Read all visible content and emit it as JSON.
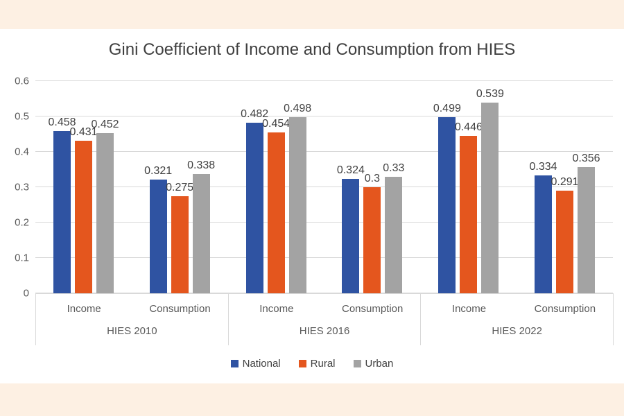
{
  "title": "Gini Coefficient of Income and Consumption from HIES",
  "colors": {
    "background_band": "#fdf0e3",
    "chart_background": "#ffffff",
    "national_blue": "#2f53a2",
    "rural_orange": "#e4561e",
    "urban_gray": "#a3a3a3",
    "gridline": "#d9d9d9",
    "axis_text": "#595959",
    "label_text": "#404040",
    "title_text": "#3f3f3f"
  },
  "legend": {
    "items": [
      {
        "label": "National",
        "color": "#2f53a2"
      },
      {
        "label": "Rural",
        "color": "#e4561e"
      },
      {
        "label": "Urban",
        "color": "#a3a3a3"
      }
    ]
  },
  "chart_data": {
    "type": "bar",
    "title": "Gini Coefficient of Income and Consumption from HIES",
    "ylim": [
      0,
      0.6
    ],
    "ytick_labels": [
      "0.6",
      "0.5",
      "0.4",
      "0.3",
      "0.2",
      "0.1",
      "0"
    ],
    "grid": true,
    "legend_position": "bottom",
    "series_names": [
      "National",
      "Rural",
      "Urban"
    ],
    "series_colors": [
      "#2f53a2",
      "#e4561e",
      "#a3a3a3"
    ],
    "groups": [
      {
        "label": "HIES 2010",
        "categories": [
          {
            "label": "Income",
            "values": [
              0.458,
              0.431,
              0.452
            ],
            "value_labels": [
              "0.458",
              "0.431",
              "0.452"
            ]
          },
          {
            "label": "Consumption",
            "values": [
              0.321,
              0.275,
              0.338
            ],
            "value_labels": [
              "0.321",
              "0.275",
              "0.338"
            ]
          }
        ]
      },
      {
        "label": "HIES 2016",
        "categories": [
          {
            "label": "Income",
            "values": [
              0.482,
              0.454,
              0.498
            ],
            "value_labels": [
              "0.482",
              "0.454",
              "0.498"
            ]
          },
          {
            "label": "Consumption",
            "values": [
              0.324,
              0.3,
              0.33
            ],
            "value_labels": [
              "0.324",
              "0.3",
              "0.33"
            ]
          }
        ]
      },
      {
        "label": "HIES 2022",
        "categories": [
          {
            "label": "Income",
            "values": [
              0.499,
              0.446,
              0.539
            ],
            "value_labels": [
              "0.499",
              "0.446",
              "0.539"
            ]
          },
          {
            "label": "Consumption",
            "values": [
              0.334,
              0.291,
              0.356
            ],
            "value_labels": [
              "0.334",
              "0.291",
              "0.356"
            ]
          }
        ]
      }
    ]
  }
}
